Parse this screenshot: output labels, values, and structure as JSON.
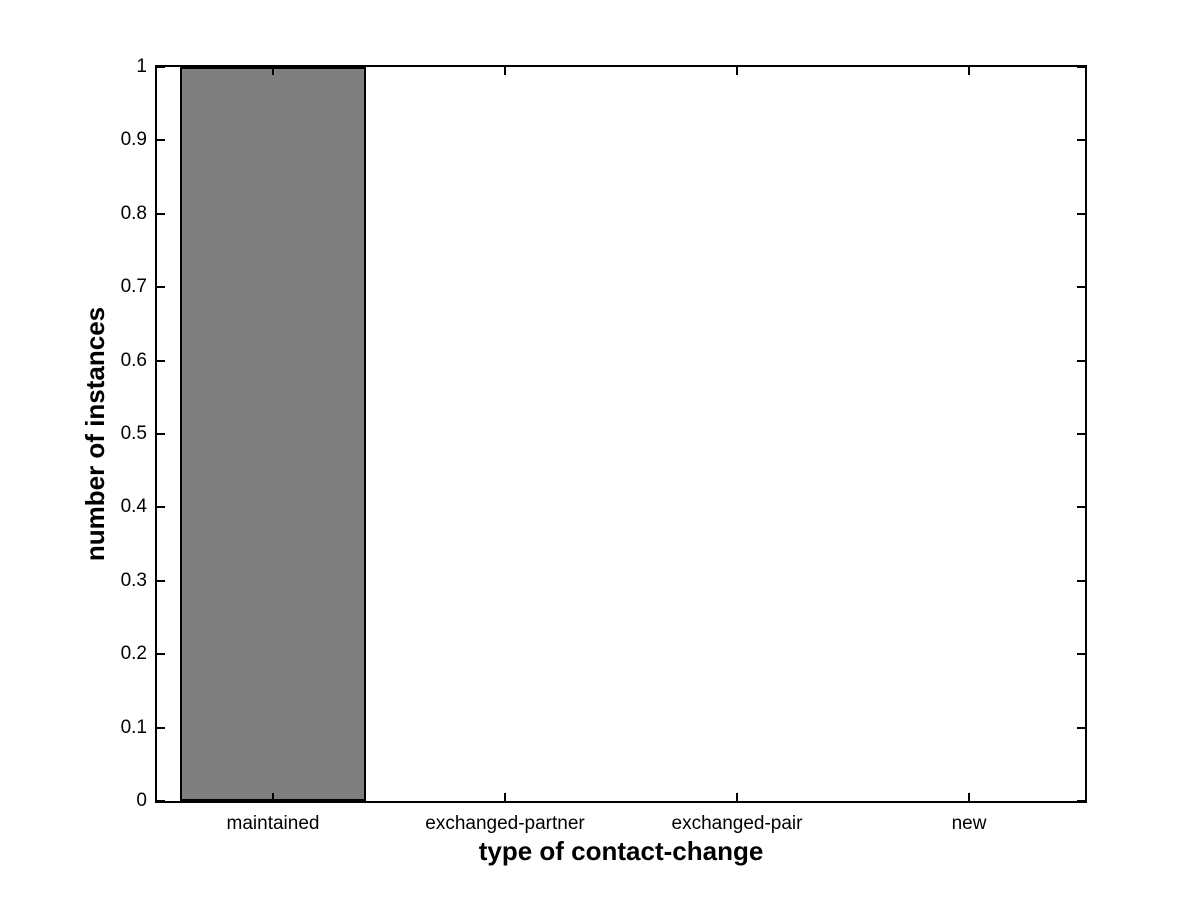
{
  "figure": {
    "background": "#ffffff",
    "axis_color": "#000000"
  },
  "chart_data": {
    "type": "bar",
    "title": "",
    "xlabel": "type of contact-change",
    "ylabel": "number of instances",
    "categories": [
      "maintained",
      "exchanged-partner",
      "exchanged-pair",
      "new"
    ],
    "values": [
      1,
      0,
      0,
      0
    ],
    "ylim": [
      0,
      1
    ],
    "yticks": [
      0,
      0.1,
      0.2,
      0.3,
      0.4,
      0.5,
      0.6,
      0.7,
      0.8,
      0.9,
      1
    ],
    "ytick_labels": [
      "0",
      "0.1",
      "0.2",
      "0.3",
      "0.4",
      "0.5",
      "0.6",
      "0.7",
      "0.8",
      "0.9",
      "1"
    ],
    "bar_width_fraction": 0.8,
    "bar_fill": "#7f7f7f",
    "bar_edge": "#000000",
    "grid": false,
    "legend": null,
    "box": true,
    "tick_direction": "in"
  }
}
